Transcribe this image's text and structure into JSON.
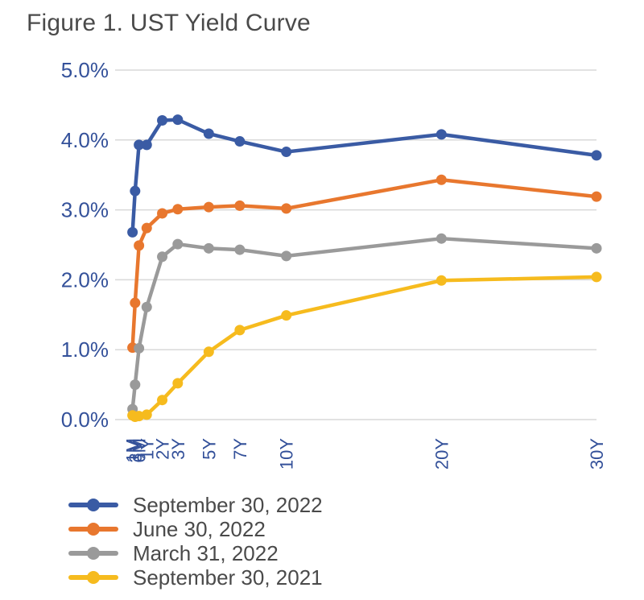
{
  "figure": {
    "title": "Figure 1. UST Yield Curve"
  },
  "chart_data": {
    "type": "line",
    "title": "Figure 1. UST Yield Curve",
    "xlabel": "",
    "ylabel": "",
    "x_tenors_years": [
      0.0833,
      0.25,
      0.5,
      1,
      2,
      3,
      5,
      7,
      10,
      20,
      30
    ],
    "categories": [
      "1M",
      "3M",
      "6M",
      "1Y",
      "2Y",
      "3Y",
      "5Y",
      "7Y",
      "10Y",
      "20Y",
      "30Y"
    ],
    "y_ticks": [
      "0.0%",
      "1.0%",
      "2.0%",
      "3.0%",
      "4.0%",
      "5.0%"
    ],
    "ylim": [
      0,
      5
    ],
    "grid": true,
    "legend_position": "bottom",
    "series": [
      {
        "name": "September 30, 2022",
        "color": "#3a5ba4",
        "values": [
          2.68,
          3.27,
          3.93,
          3.93,
          4.28,
          4.29,
          4.09,
          3.98,
          3.83,
          4.08,
          3.78
        ]
      },
      {
        "name": "June 30, 2022",
        "color": "#e8772e",
        "values": [
          1.03,
          1.67,
          2.49,
          2.74,
          2.95,
          3.01,
          3.04,
          3.06,
          3.02,
          3.43,
          3.19
        ]
      },
      {
        "name": "March 31, 2022",
        "color": "#9a9a9a",
        "values": [
          0.15,
          0.5,
          1.02,
          1.61,
          2.33,
          2.51,
          2.45,
          2.43,
          2.34,
          2.59,
          2.45
        ]
      },
      {
        "name": "September 30, 2021",
        "color": "#f6bb1e",
        "values": [
          0.06,
          0.04,
          0.05,
          0.07,
          0.28,
          0.52,
          0.97,
          1.28,
          1.49,
          1.99,
          2.04
        ]
      }
    ]
  }
}
